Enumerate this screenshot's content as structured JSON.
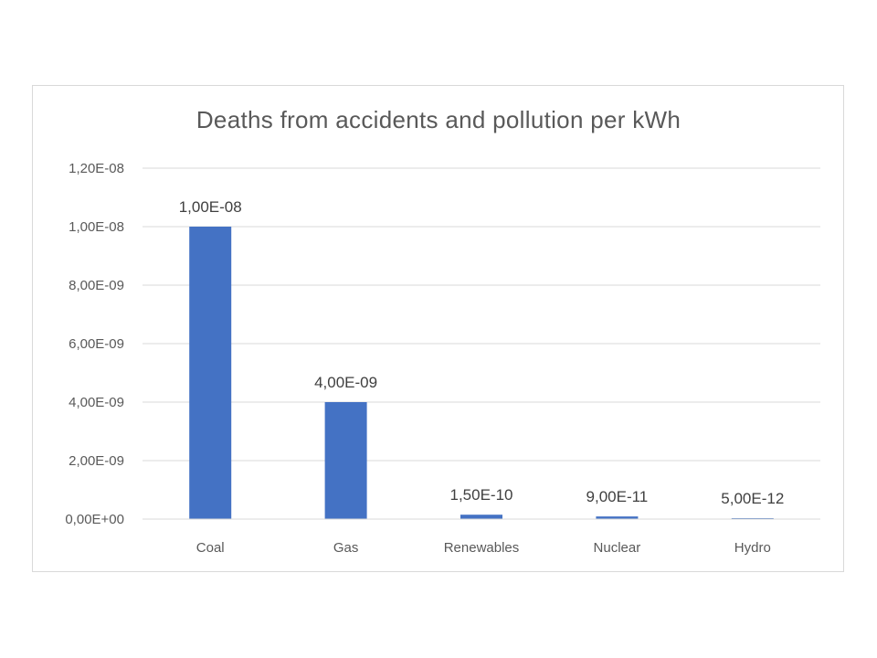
{
  "chart_data": {
    "type": "bar",
    "title": "Deaths from accidents and pollution per kWh",
    "xlabel": "",
    "ylabel": "",
    "categories": [
      "Coal",
      "Gas",
      "Renewables",
      "Nuclear",
      "Hydro"
    ],
    "values": [
      1e-08,
      4e-09,
      1.5e-10,
      9e-11,
      5e-12
    ],
    "data_labels": [
      "1,00E-08",
      "4,00E-09",
      "1,50E-10",
      "9,00E-11",
      "5,00E-12"
    ],
    "ylim": [
      0,
      1.2e-08
    ],
    "yticks": [
      0,
      2e-09,
      4e-09,
      6e-09,
      8e-09,
      1e-08,
      1.2e-08
    ],
    "ytick_labels": [
      "0,00E+00",
      "2,00E-09",
      "4,00E-09",
      "6,00E-09",
      "8,00E-09",
      "1,00E-08",
      "1,20E-08"
    ],
    "grid": true,
    "legend": "none",
    "bar_color": "#4472c4",
    "grid_color": "#d9d9d9"
  }
}
